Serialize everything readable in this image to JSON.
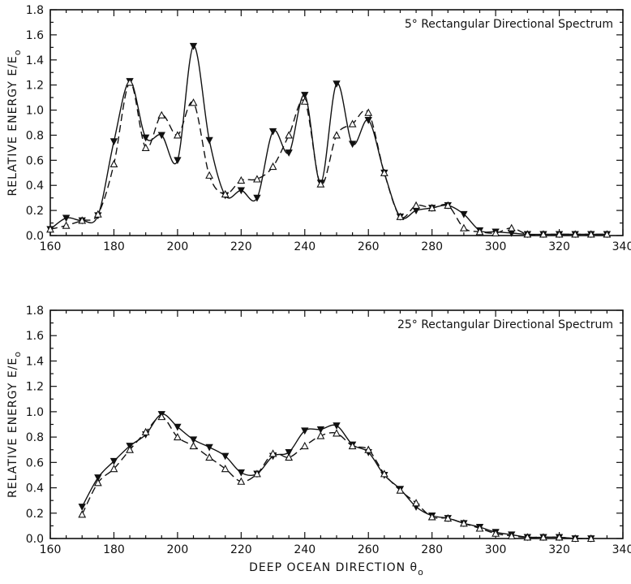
{
  "chart_data": [
    {
      "type": "line",
      "title": "5° Rectangular Directional Spectrum",
      "ylabel": "RELATIVE ENERGY E/E",
      "ylabel_subscript": "o",
      "xlabel": "",
      "xlim": [
        160,
        340
      ],
      "ylim": [
        0,
        1.8
      ],
      "xticks": [
        "160",
        "180",
        "200",
        "220",
        "240",
        "260",
        "280",
        "300",
        "320",
        "340"
      ],
      "yticks": [
        "0.0",
        "0.2",
        "0.4",
        "0.6",
        "0.8",
        "1.0",
        "1.2",
        "1.4",
        "1.6",
        "1.8"
      ],
      "grid": false,
      "series": [
        {
          "style": "solid",
          "marker": "filled-triangle-down",
          "color": "#111111",
          "x": [
            160,
            165,
            170,
            175,
            180,
            185,
            190,
            195,
            200,
            205,
            210,
            215,
            220,
            225,
            230,
            235,
            240,
            245,
            250,
            255,
            260,
            265,
            270,
            275,
            280,
            285,
            290,
            295,
            300,
            305,
            310,
            315,
            320,
            325,
            330,
            335
          ],
          "y": [
            0.05,
            0.14,
            0.12,
            0.16,
            0.75,
            1.23,
            0.78,
            0.8,
            0.6,
            1.51,
            0.76,
            0.32,
            0.36,
            0.3,
            0.83,
            0.66,
            1.12,
            0.42,
            1.21,
            0.73,
            0.92,
            0.5,
            0.15,
            0.2,
            0.22,
            0.24,
            0.17,
            0.04,
            0.03,
            0.02,
            0.01,
            0.01,
            0.01,
            0.01,
            0.01,
            0.01
          ]
        },
        {
          "style": "dashed",
          "marker": "triangle-up",
          "color": "#111111",
          "x": [
            160,
            165,
            170,
            175,
            180,
            185,
            190,
            195,
            200,
            205,
            210,
            215,
            220,
            225,
            230,
            235,
            240,
            245,
            250,
            255,
            260,
            265,
            270,
            275,
            280,
            285,
            290,
            295,
            300,
            305,
            310,
            315,
            320,
            325,
            330,
            335
          ],
          "y": [
            0.05,
            0.08,
            0.12,
            0.17,
            0.57,
            1.22,
            0.7,
            0.96,
            0.8,
            1.06,
            0.48,
            0.33,
            0.44,
            0.45,
            0.55,
            0.8,
            1.07,
            0.41,
            0.8,
            0.89,
            0.98,
            0.5,
            0.15,
            0.24,
            0.22,
            0.24,
            0.06,
            0.03,
            0.02,
            0.06,
            0.01,
            0.01,
            0.01,
            0.01,
            0.01,
            0.01
          ]
        }
      ]
    },
    {
      "type": "line",
      "title": "25° Rectangular Directional Spectrum",
      "ylabel": "RELATIVE ENERGY E/E",
      "ylabel_subscript": "o",
      "xlabel": "DEEP OCEAN DIRECTION θ",
      "xlabel_subscript": "o",
      "xlim": [
        160,
        340
      ],
      "ylim": [
        0,
        1.8
      ],
      "xticks": [
        "160",
        "180",
        "200",
        "220",
        "240",
        "260",
        "280",
        "300",
        "320",
        "340"
      ],
      "yticks": [
        "0.0",
        "0.2",
        "0.4",
        "0.6",
        "0.8",
        "1.0",
        "1.2",
        "1.4",
        "1.6",
        "1.8"
      ],
      "grid": false,
      "series": [
        {
          "style": "solid",
          "marker": "filled-triangle-down",
          "color": "#111111",
          "x": [
            170,
            175,
            180,
            185,
            190,
            195,
            200,
            205,
            210,
            215,
            220,
            225,
            230,
            235,
            240,
            245,
            250,
            255,
            260,
            265,
            270,
            275,
            280,
            285,
            290,
            295,
            300,
            305,
            310,
            315,
            320,
            325,
            330
          ],
          "y": [
            0.25,
            0.48,
            0.61,
            0.73,
            0.82,
            0.98,
            0.88,
            0.78,
            0.72,
            0.65,
            0.52,
            0.51,
            0.65,
            0.68,
            0.85,
            0.86,
            0.89,
            0.74,
            0.68,
            0.5,
            0.39,
            0.25,
            0.18,
            0.16,
            0.12,
            0.09,
            0.05,
            0.03,
            0.01,
            0.01,
            0.01,
            0.0,
            0.0
          ]
        },
        {
          "style": "dashed",
          "marker": "triangle-up",
          "color": "#111111",
          "x": [
            170,
            175,
            180,
            185,
            190,
            195,
            200,
            205,
            210,
            215,
            220,
            225,
            230,
            235,
            240,
            245,
            250,
            255,
            260,
            265,
            270,
            275,
            280,
            285,
            290,
            295,
            300,
            305,
            310,
            315,
            320,
            325,
            330
          ],
          "y": [
            0.19,
            0.44,
            0.55,
            0.7,
            0.84,
            0.96,
            0.8,
            0.73,
            0.64,
            0.55,
            0.45,
            0.51,
            0.67,
            0.64,
            0.73,
            0.81,
            0.83,
            0.73,
            0.7,
            0.51,
            0.38,
            0.28,
            0.17,
            0.16,
            0.12,
            0.08,
            0.04,
            0.02,
            0.01,
            0.01,
            0.01,
            0.0,
            0.0
          ]
        }
      ]
    }
  ]
}
